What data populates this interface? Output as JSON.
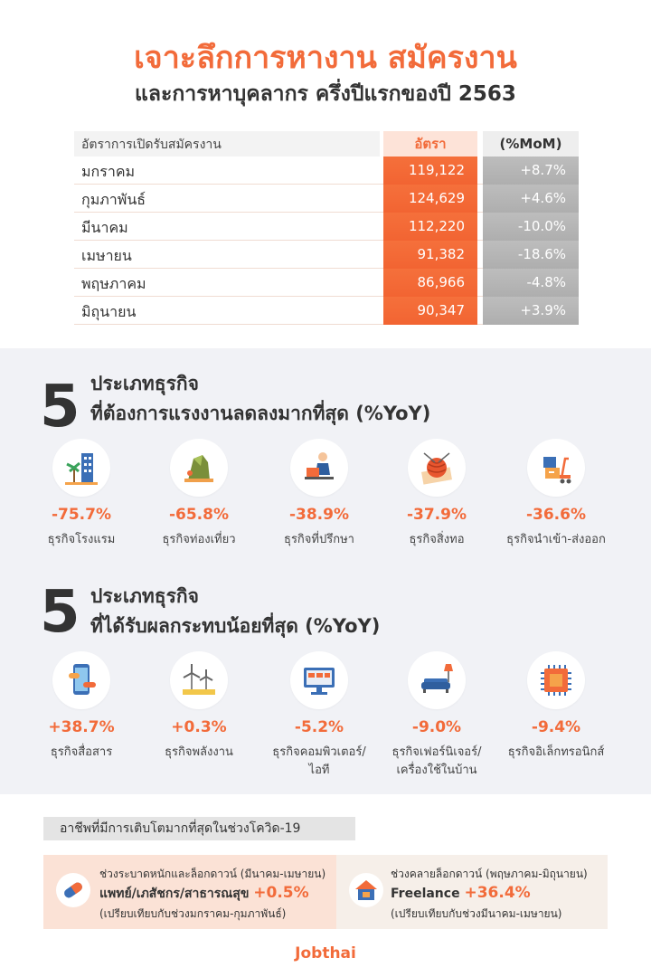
{
  "header": {
    "title": "เจาะลึกการหางาน สมัครงาน",
    "subtitle": "และการหาบุคลากร ครึ่งปีแรกของปี 2563"
  },
  "table": {
    "label": "อัตราการเปิดรับสมัครงาน",
    "col_rate": "อัตรา",
    "col_mom": "(%MoM)",
    "rows": [
      {
        "month": "มกราคม",
        "rate": "119,122",
        "mom": "+8.7%"
      },
      {
        "month": "กุมภาพันธ์",
        "rate": "124,629",
        "mom": "+4.6%"
      },
      {
        "month": "มีนาคม",
        "rate": "112,220",
        "mom": "-10.0%"
      },
      {
        "month": "เมษายน",
        "rate": "91,382",
        "mom": "-18.6%"
      },
      {
        "month": "พฤษภาคม",
        "rate": "86,966",
        "mom": "-4.8%"
      },
      {
        "month": "มิถุนายน",
        "rate": "90,347",
        "mom": "+3.9%"
      }
    ]
  },
  "section_decline": {
    "number": "5",
    "line1": "ประเภทธุรกิจ",
    "line2": "ที่ต้องการแรงงานลดลงมากที่สุด (%YoY)",
    "items": [
      {
        "pct": "-75.7%",
        "name": "ธุรกิจโรงแรม",
        "icon": "hotel-icon"
      },
      {
        "pct": "-65.8%",
        "name": "ธุรกิจท่องเที่ยว",
        "icon": "travel-icon"
      },
      {
        "pct": "-38.9%",
        "name": "ธุรกิจที่ปรึกษา",
        "icon": "consultant-icon"
      },
      {
        "pct": "-37.9%",
        "name": "ธุรกิจสิ่งทอ",
        "icon": "yarn-icon"
      },
      {
        "pct": "-36.6%",
        "name": "ธุรกิจนำเข้า-ส่งออก",
        "icon": "import-export-icon"
      }
    ]
  },
  "section_least": {
    "number": "5",
    "line1": "ประเภทธุรกิจ",
    "line2": "ที่ได้รับผลกระทบน้อยที่สุด (%YoY)",
    "items": [
      {
        "pct": "+38.7%",
        "name": "ธุรกิจสื่อสาร",
        "name2": "",
        "icon": "smartphone-icon"
      },
      {
        "pct": "+0.3%",
        "name": "ธุรกิจพลังงาน",
        "name2": "",
        "icon": "wind-turbine-icon"
      },
      {
        "pct": "-5.2%",
        "name": "ธุรกิจคอมพิวเตอร์/",
        "name2": "ไอที",
        "icon": "computer-icon"
      },
      {
        "pct": "-9.0%",
        "name": "ธุรกิจเฟอร์นิเจอร์/",
        "name2": "เครื่องใช้ในบ้าน",
        "icon": "sofa-icon"
      },
      {
        "pct": "-9.4%",
        "name": "ธุรกิจอิเล็กทรอนิกส์",
        "name2": "",
        "icon": "chip-icon"
      }
    ]
  },
  "covid": {
    "label": "อาชีพที่มีการเติบโตมากที่สุดในช่วงโควิด-19",
    "left": {
      "period": "ช่วงระบาดหนักและล็อกดาวน์ (มีนาคม-เมษายน)",
      "job": "แพทย์/เภสัชกร/สาธารณสุข",
      "pct": "+0.5%",
      "note": "(เปรียบเทียบกับช่วงมกราคม-กุมภาพันธ์)"
    },
    "right": {
      "period": "ช่วงคลายล็อกดาวน์ (พฤษภาคม-มิถุนายน)",
      "job": "Freelance",
      "pct": "+36.4%",
      "note": "(เปรียบเทียบกับช่วงมีนาคม-เมษายน)"
    }
  },
  "footer": {
    "logo": "Jobthai"
  }
}
